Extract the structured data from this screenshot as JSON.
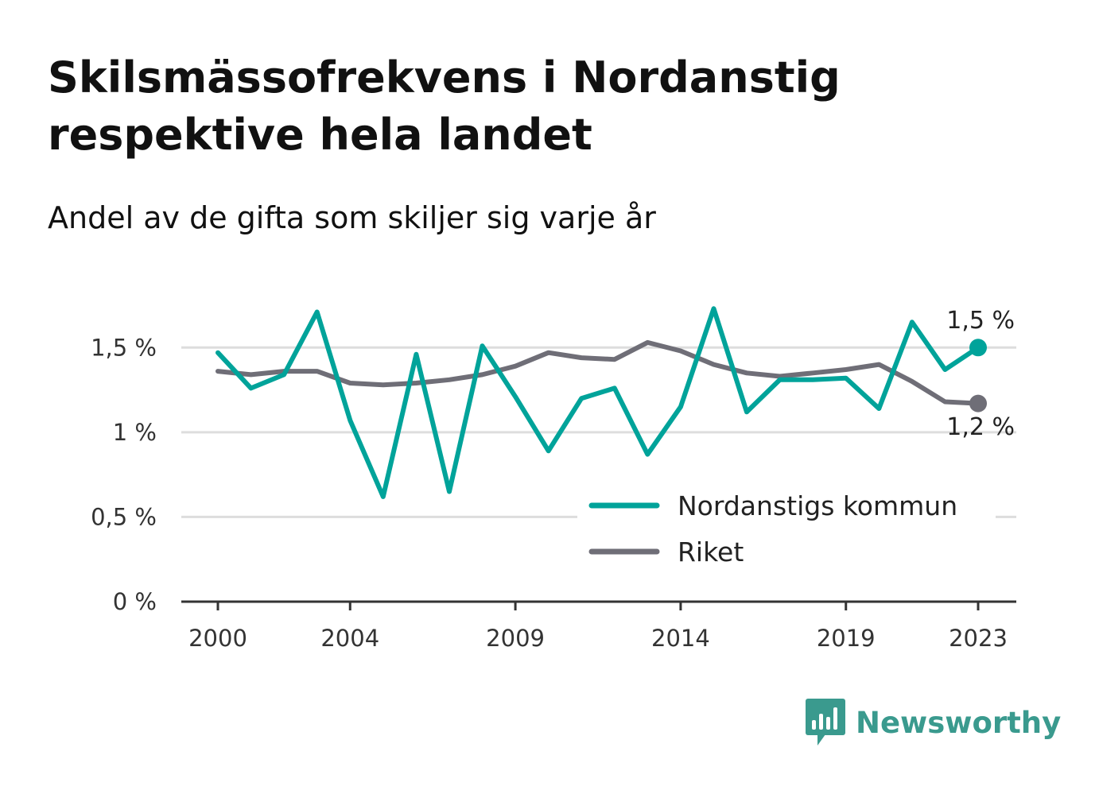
{
  "title": "Skilsmässofrekvens i Nordanstig respektive hela landet",
  "subtitle": "Andel av de gifta som skiljer sig varje år",
  "brand": {
    "name": "Newsworthy",
    "icon": "bar-chart-speech-bubble-icon",
    "color": "#3a9a8e"
  },
  "chart_data": {
    "type": "line",
    "x": [
      2000,
      2001,
      2002,
      2003,
      2004,
      2005,
      2006,
      2007,
      2008,
      2009,
      2010,
      2011,
      2012,
      2013,
      2014,
      2015,
      2016,
      2017,
      2018,
      2019,
      2020,
      2021,
      2022,
      2023
    ],
    "series": [
      {
        "name": "Nordanstigs kommun",
        "color": "#00a39a",
        "values": [
          1.47,
          1.26,
          1.34,
          1.71,
          1.07,
          0.62,
          1.46,
          0.65,
          1.51,
          1.21,
          0.89,
          1.2,
          1.26,
          0.87,
          1.15,
          1.73,
          1.12,
          1.31,
          1.31,
          1.32,
          1.14,
          1.65,
          1.37,
          1.5
        ]
      },
      {
        "name": "Riket",
        "color": "#6f6e77",
        "values": [
          1.36,
          1.34,
          1.36,
          1.36,
          1.29,
          1.28,
          1.29,
          1.31,
          1.34,
          1.39,
          1.47,
          1.44,
          1.43,
          1.53,
          1.48,
          1.4,
          1.35,
          1.33,
          1.35,
          1.37,
          1.4,
          1.3,
          1.18,
          1.17
        ]
      }
    ],
    "ylim": [
      0,
      1.75
    ],
    "y_ticks": [
      0,
      0.5,
      1,
      1.5
    ],
    "y_tick_labels": [
      "0 %",
      "0,5 %",
      "1 %",
      "1,5 %"
    ],
    "x_ticks": [
      2000,
      2004,
      2009,
      2014,
      2019,
      2023
    ],
    "x_tick_labels": [
      "2000",
      "2004",
      "2009",
      "2014",
      "2019",
      "2023"
    ],
    "end_labels": [
      "1,5 %",
      "1,2 %"
    ],
    "grid": true,
    "grid_color": "#dddddd",
    "legend_position": "bottom-right"
  }
}
